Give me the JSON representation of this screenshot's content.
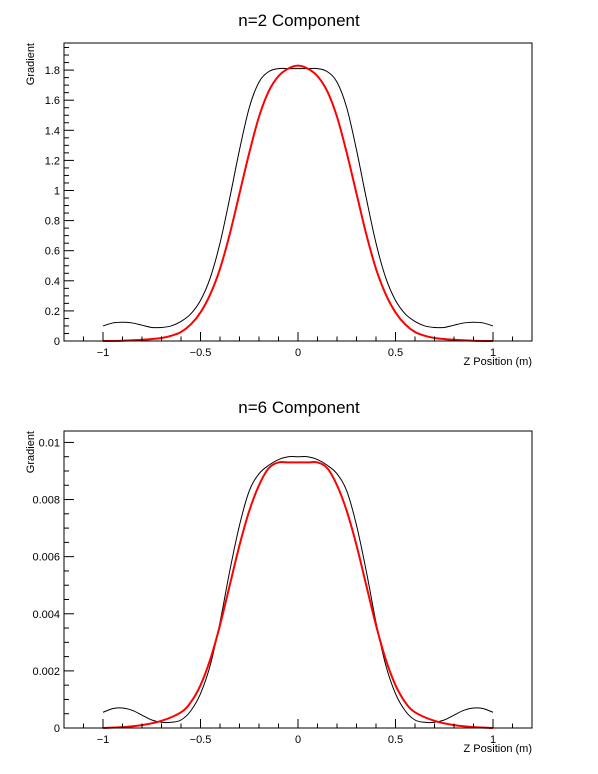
{
  "chart_data": [
    {
      "type": "line",
      "title": "n=2 Component",
      "xlabel": "Z Position (m)",
      "ylabel": "Gradient",
      "xlim": [
        -1.2,
        1.2
      ],
      "ylim": [
        0,
        1.98
      ],
      "xticks": [
        -1,
        -0.5,
        0,
        0.5,
        1
      ],
      "xtick_labels": [
        "−1",
        "−0.5",
        "0",
        "0.5",
        "1"
      ],
      "yticks": [
        0,
        0.2,
        0.4,
        0.6,
        0.8,
        1,
        1.2,
        1.4,
        1.6,
        1.8
      ],
      "ytick_labels": [
        "0",
        "0.2",
        "0.4",
        "0.6",
        "0.8",
        "1",
        "1.2",
        "1.4",
        "1.6",
        "1.8"
      ],
      "series": [
        {
          "color": "#000000",
          "x": [
            -1.0,
            -0.95,
            -0.9,
            -0.85,
            -0.8,
            -0.75,
            -0.7,
            -0.65,
            -0.6,
            -0.55,
            -0.5,
            -0.45,
            -0.4,
            -0.35,
            -0.3,
            -0.25,
            -0.2,
            -0.15,
            -0.1,
            -0.05,
            0.0,
            0.05,
            0.1,
            0.15,
            0.2,
            0.25,
            0.3,
            0.35,
            0.4,
            0.45,
            0.5,
            0.55,
            0.6,
            0.65,
            0.7,
            0.75,
            0.8,
            0.85,
            0.9,
            0.95,
            1.0
          ],
          "y": [
            0.1,
            0.12,
            0.125,
            0.12,
            0.105,
            0.09,
            0.09,
            0.1,
            0.13,
            0.18,
            0.27,
            0.42,
            0.65,
            0.95,
            1.27,
            1.55,
            1.72,
            1.79,
            1.81,
            1.81,
            1.81,
            1.81,
            1.81,
            1.79,
            1.72,
            1.55,
            1.27,
            0.95,
            0.65,
            0.42,
            0.27,
            0.18,
            0.13,
            0.1,
            0.09,
            0.09,
            0.105,
            0.12,
            0.125,
            0.12,
            0.1
          ]
        },
        {
          "color": "#ff0000",
          "x": [
            -1.0,
            -0.9,
            -0.8,
            -0.7,
            -0.65,
            -0.6,
            -0.55,
            -0.5,
            -0.45,
            -0.4,
            -0.35,
            -0.3,
            -0.25,
            -0.2,
            -0.15,
            -0.1,
            -0.05,
            0.0,
            0.05,
            0.1,
            0.15,
            0.2,
            0.25,
            0.3,
            0.35,
            0.4,
            0.45,
            0.5,
            0.55,
            0.6,
            0.65,
            0.7,
            0.8,
            0.9,
            1.0
          ],
          "y": [
            0.0,
            0.002,
            0.008,
            0.02,
            0.035,
            0.06,
            0.11,
            0.19,
            0.31,
            0.48,
            0.71,
            0.98,
            1.25,
            1.49,
            1.66,
            1.76,
            1.81,
            1.83,
            1.81,
            1.76,
            1.66,
            1.49,
            1.25,
            0.98,
            0.71,
            0.48,
            0.31,
            0.19,
            0.11,
            0.06,
            0.035,
            0.02,
            0.008,
            0.002,
            0.0
          ]
        }
      ]
    },
    {
      "type": "line",
      "title": "n=6 Component",
      "xlabel": "Z Position (m)",
      "ylabel": "Gradient",
      "xlim": [
        -1.2,
        1.2
      ],
      "ylim": [
        0,
        0.0104
      ],
      "xticks": [
        -1,
        -0.5,
        0,
        0.5,
        1
      ],
      "xtick_labels": [
        "−1",
        "−0.5",
        "0",
        "0.5",
        "1"
      ],
      "yticks": [
        0,
        0.002,
        0.004,
        0.006,
        0.008,
        0.01
      ],
      "ytick_labels": [
        "0",
        "0.002",
        "0.004",
        "0.006",
        "0.008",
        "0.01"
      ],
      "series": [
        {
          "color": "#000000",
          "x": [
            -1.0,
            -0.95,
            -0.9,
            -0.85,
            -0.8,
            -0.75,
            -0.7,
            -0.65,
            -0.6,
            -0.55,
            -0.5,
            -0.45,
            -0.4,
            -0.35,
            -0.3,
            -0.25,
            -0.2,
            -0.15,
            -0.1,
            -0.05,
            0.0,
            0.05,
            0.1,
            0.15,
            0.2,
            0.25,
            0.3,
            0.35,
            0.4,
            0.45,
            0.5,
            0.55,
            0.6,
            0.65,
            0.7,
            0.75,
            0.8,
            0.85,
            0.9,
            0.95,
            1.0
          ],
          "y": [
            0.00055,
            0.00068,
            0.0007,
            0.00062,
            0.00045,
            0.00028,
            0.0002,
            0.0002,
            0.00028,
            0.0006,
            0.0012,
            0.0022,
            0.0037,
            0.0055,
            0.0071,
            0.0083,
            0.0089,
            0.0092,
            0.0094,
            0.0095,
            0.0095,
            0.0095,
            0.0094,
            0.0092,
            0.0089,
            0.0083,
            0.0071,
            0.0055,
            0.0037,
            0.0022,
            0.0012,
            0.0006,
            0.00028,
            0.0002,
            0.0002,
            0.00028,
            0.00045,
            0.00062,
            0.0007,
            0.00068,
            0.00055
          ]
        },
        {
          "color": "#ff0000",
          "x": [
            -1.0,
            -0.9,
            -0.8,
            -0.7,
            -0.6,
            -0.55,
            -0.5,
            -0.45,
            -0.4,
            -0.35,
            -0.3,
            -0.25,
            -0.2,
            -0.15,
            -0.1,
            -0.05,
            0.0,
            0.05,
            0.1,
            0.15,
            0.2,
            0.25,
            0.3,
            0.35,
            0.4,
            0.45,
            0.5,
            0.55,
            0.6,
            0.7,
            0.8,
            0.9,
            1.0
          ],
          "y": [
            0.0,
            3e-05,
            0.0001,
            0.00025,
            0.00055,
            0.0009,
            0.0015,
            0.0024,
            0.0036,
            0.005,
            0.0064,
            0.0076,
            0.0085,
            0.0091,
            0.0093,
            0.0093,
            0.0093,
            0.0093,
            0.0093,
            0.0091,
            0.0085,
            0.0076,
            0.0064,
            0.005,
            0.0036,
            0.0024,
            0.0015,
            0.0009,
            0.00055,
            0.00025,
            0.0001,
            3e-05,
            0.0
          ]
        }
      ]
    }
  ]
}
